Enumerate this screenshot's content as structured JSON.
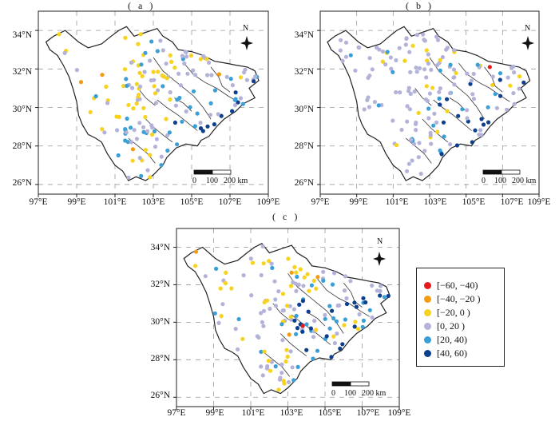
{
  "panels": [
    {
      "id": "a",
      "title": "( a )"
    },
    {
      "id": "b",
      "title": "( b )"
    },
    {
      "id": "c",
      "title": "( c )"
    }
  ],
  "axes": {
    "x_ticks": [
      "97°E",
      "99°E",
      "101°E",
      "103°E",
      "105°E",
      "107°E",
      "109°E"
    ],
    "y_ticks": [
      "34°N",
      "32°N",
      "30°N",
      "28°N",
      "26°N"
    ],
    "lon_range": [
      97,
      109
    ],
    "lat_range": [
      25.5,
      35
    ]
  },
  "north_label": "N",
  "scale_bar": {
    "labels": [
      "0",
      "100",
      "200 km"
    ]
  },
  "legend": [
    {
      "label": "[−60, −40)",
      "color": "#e41a1c"
    },
    {
      "label": "[−40, −20 )",
      "color": "#f39c12"
    },
    {
      "label": "[−20, 0 )",
      "color": "#f7d21e"
    },
    {
      "label": "[0, 20 )",
      "color": "#b3b3d9"
    },
    {
      "label": "[20, 40)",
      "color": "#3a9fd6"
    },
    {
      "label": "[40, 60)",
      "color": "#0d3f8f"
    }
  ]
}
